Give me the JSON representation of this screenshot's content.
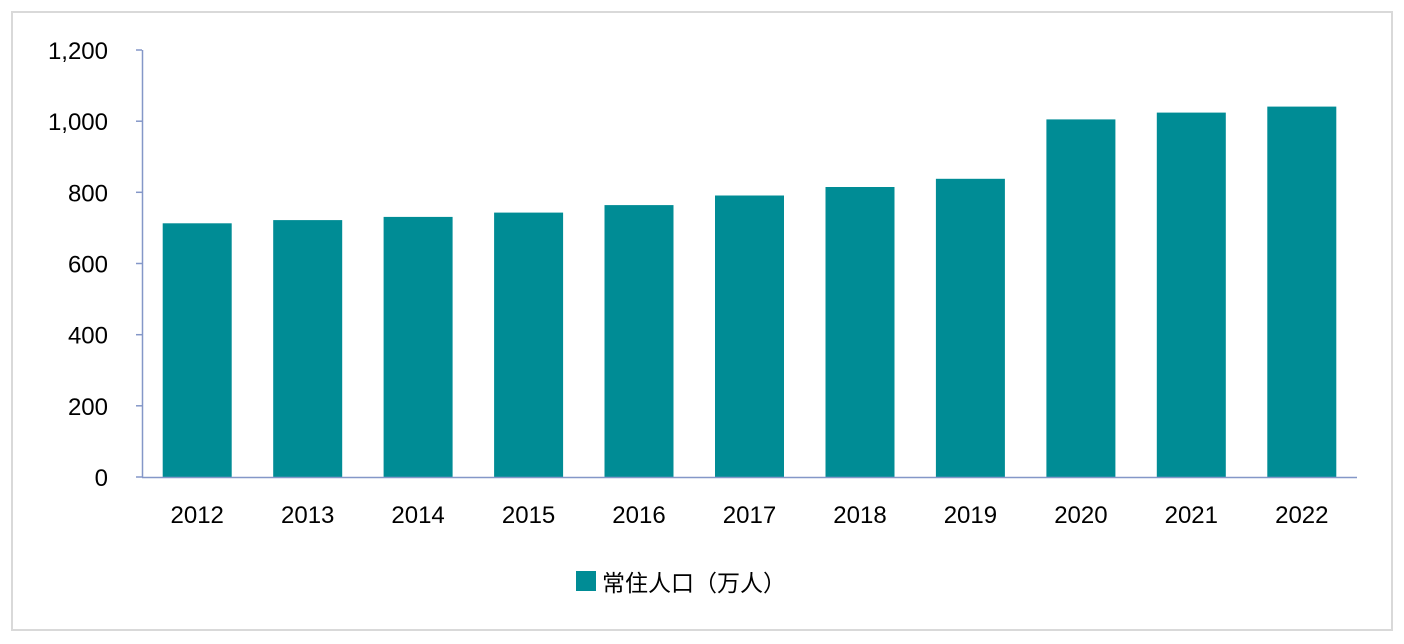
{
  "chart_data": {
    "type": "bar",
    "title": "",
    "xlabel": "",
    "ylabel": "",
    "categories": [
      "2012",
      "2013",
      "2014",
      "2015",
      "2016",
      "2017",
      "2018",
      "2019",
      "2020",
      "2021",
      "2022"
    ],
    "series": [
      {
        "name": "常住人口（万人）",
        "color": "#008c95",
        "values": [
          713,
          722,
          731,
          743,
          764,
          791,
          815,
          838,
          1005,
          1024,
          1041
        ]
      }
    ],
    "ylim": [
      0,
      1200
    ],
    "yticks": [
      0,
      200,
      400,
      600,
      800,
      1000,
      1200
    ],
    "ytick_labels": [
      "0",
      "200",
      "400",
      "600",
      "800",
      "1,000",
      "1,200"
    ],
    "grid": false,
    "legend_position": "bottom",
    "axis_color": "#8497c8"
  }
}
